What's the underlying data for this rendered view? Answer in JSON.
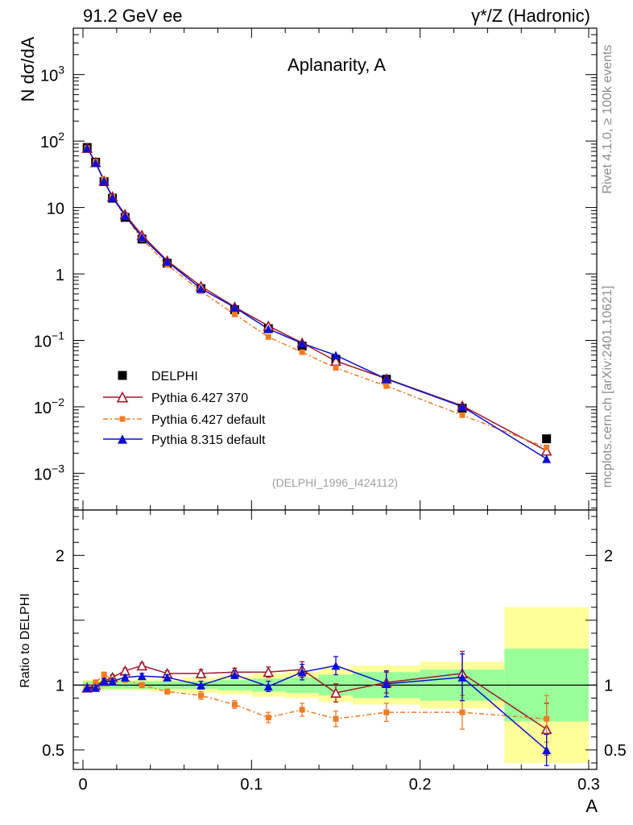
{
  "header": {
    "left": "91.2 GeV ee",
    "right": "γ*/Z (Hadronic)"
  },
  "side": {
    "rivet": "Rivet 4.1.0, ≥ 100k events",
    "mcplots": "mcplots.cern.ch [arXiv:2401.10621]"
  },
  "chart_data": {
    "type": "line",
    "title": "Aplanarity, A",
    "xlabel": "A",
    "ylabel": "N  dσ/dA",
    "ratio_ylabel": "Ratio to DELPHI",
    "analysis_id": "(DELPHI_1996_I424112)",
    "xlim": [
      0,
      0.3
    ],
    "ylim_log": [
      0.00028,
      5000
    ],
    "ratio_ylim": [
      0.35,
      2.35
    ],
    "x_ticks": [
      "0",
      "0.1",
      "0.2",
      "0.3"
    ],
    "y_ticks": [
      {
        "value": 0.001,
        "base": "10",
        "exp": "−3"
      },
      {
        "value": 0.01,
        "base": "10",
        "exp": "−2"
      },
      {
        "value": 0.1,
        "base": "10",
        "exp": "−1"
      },
      {
        "value": 1,
        "base": "1",
        "exp": ""
      },
      {
        "value": 10,
        "base": "10",
        "exp": ""
      },
      {
        "value": 100,
        "base": "10",
        "exp": "2"
      },
      {
        "value": 1000,
        "base": "10",
        "exp": "3"
      }
    ],
    "ratio_ticks": [
      {
        "value": 0.5,
        "label": "0.5"
      },
      {
        "value": 1,
        "label": "1"
      },
      {
        "value": 2,
        "label": "2"
      }
    ],
    "bin_edges": [
      0,
      0.005,
      0.01,
      0.015,
      0.02,
      0.03,
      0.04,
      0.06,
      0.08,
      0.1,
      0.12,
      0.14,
      0.16,
      0.2,
      0.25,
      0.3
    ],
    "x": [
      0.0025,
      0.0075,
      0.0125,
      0.0175,
      0.025,
      0.035,
      0.05,
      0.07,
      0.09,
      0.11,
      0.13,
      0.15,
      0.18,
      0.225,
      0.275
    ],
    "data_band_inner": [
      0.03,
      0.03,
      0.03,
      0.03,
      0.03,
      0.03,
      0.03,
      0.03,
      0.04,
      0.05,
      0.06,
      0.08,
      0.1,
      0.12,
      0.28
    ],
    "data_band_outer": [
      0.04,
      0.04,
      0.04,
      0.04,
      0.04,
      0.04,
      0.05,
      0.06,
      0.07,
      0.09,
      0.1,
      0.13,
      0.15,
      0.18,
      0.6
    ],
    "series": [
      {
        "name": "DELPHI",
        "color": "#000000",
        "marker": "square",
        "values": [
          80,
          48,
          24.5,
          13.8,
          7.1,
          3.35,
          1.45,
          0.6,
          0.29,
          0.15,
          0.082,
          0.052,
          0.026,
          0.0095,
          0.0033
        ],
        "ratio": [
          1,
          1,
          1,
          1,
          1,
          1,
          1,
          1,
          1,
          1,
          1,
          1,
          1,
          1,
          1
        ]
      },
      {
        "name": "Pythia 6.427 370",
        "color": "#a0182c",
        "marker": "open-triangle",
        "dash": "",
        "ratio": [
          0.98,
          1.0,
          1.03,
          1.06,
          1.11,
          1.15,
          1.09,
          1.09,
          1.1,
          1.1,
          1.12,
          0.94,
          1.02,
          1.09,
          0.66
        ],
        "ratio_err": [
          0.02,
          0.02,
          0.02,
          0.02,
          0.02,
          0.02,
          0.02,
          0.03,
          0.03,
          0.04,
          0.06,
          0.07,
          0.08,
          0.17,
          0.2
        ]
      },
      {
        "name": "Pythia 6.427 default",
        "color": "#f27a23",
        "marker": "square",
        "dash": "6 3 2 3",
        "ratio": [
          0.98,
          1.02,
          1.08,
          1.04,
          1.04,
          1.0,
          0.95,
          0.92,
          0.85,
          0.75,
          0.81,
          0.74,
          0.79,
          0.79,
          0.74
        ],
        "ratio_err": [
          0.02,
          0.02,
          0.02,
          0.02,
          0.02,
          0.02,
          0.02,
          0.03,
          0.03,
          0.04,
          0.05,
          0.06,
          0.07,
          0.13,
          0.18
        ]
      },
      {
        "name": "Pythia 8.315 default",
        "color": "#0c0fd6",
        "marker": "triangle",
        "dash": "",
        "ratio": [
          0.98,
          0.98,
          1.03,
          1.03,
          1.06,
          1.07,
          1.06,
          1.0,
          1.08,
          0.99,
          1.1,
          1.15,
          1.01,
          1.06,
          0.5
        ],
        "ratio_err": [
          0.02,
          0.02,
          0.02,
          0.02,
          0.02,
          0.02,
          0.02,
          0.03,
          0.03,
          0.04,
          0.06,
          0.07,
          0.1,
          0.18,
          0.12
        ]
      }
    ],
    "band_colors": {
      "inner": "#99ff99",
      "outer": "#ffff99"
    }
  }
}
